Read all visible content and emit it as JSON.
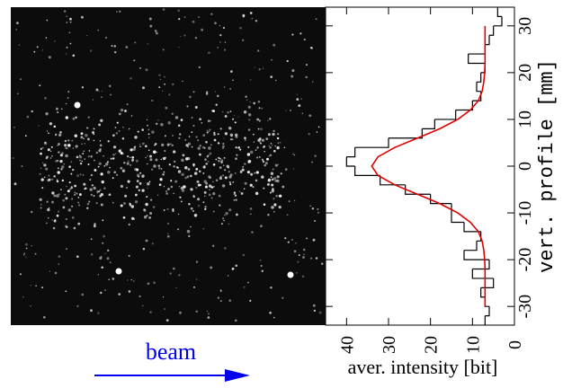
{
  "chart_data": {
    "type": "histogram",
    "orientation": "horizontal",
    "x_label": "aver. intensity [bit]",
    "y_label": "vert. profile [mm]",
    "caption": "beam",
    "xlim": [
      45,
      0
    ],
    "xticks": [
      40,
      30,
      20,
      10,
      0
    ],
    "ylim": [
      -34,
      34
    ],
    "yticks": [
      -30,
      -20,
      -10,
      0,
      10,
      20,
      30
    ],
    "bins": [
      -34,
      -32,
      -30,
      -28,
      -26,
      -24,
      -22,
      -20,
      -18,
      -16,
      -14,
      -12,
      -10,
      -8,
      -6,
      -4,
      -2,
      0,
      2,
      4,
      6,
      8,
      10,
      12,
      14,
      16,
      18,
      20,
      22,
      24,
      26,
      28,
      30,
      32,
      34
    ],
    "values": [
      7,
      6,
      7,
      8,
      5,
      10,
      6,
      12,
      9,
      8,
      12,
      15,
      15,
      20,
      26,
      32,
      38,
      40,
      38,
      30,
      22,
      19,
      14,
      10,
      8,
      9,
      8,
      7,
      11,
      7,
      6,
      5,
      3,
      4
    ],
    "color": "#000000",
    "fit": {
      "color": "#e00000",
      "y": [
        -30,
        -28,
        -26,
        -24,
        -22,
        -20,
        -18,
        -16,
        -14,
        -12,
        -10,
        -8,
        -6,
        -4,
        -2,
        0,
        2,
        4,
        6,
        8,
        10,
        12,
        14,
        16,
        18,
        20,
        22,
        24,
        26,
        28,
        30
      ],
      "values": [
        7,
        7,
        7,
        7,
        7,
        7.1,
        7.3,
        7.7,
        8.6,
        10.5,
        13.5,
        17.8,
        23.1,
        28.5,
        32.5,
        34,
        32.5,
        28.5,
        23.1,
        17.8,
        13.5,
        10.5,
        8.6,
        7.7,
        7.3,
        7.1,
        7,
        7,
        7,
        7,
        7
      ]
    }
  }
}
